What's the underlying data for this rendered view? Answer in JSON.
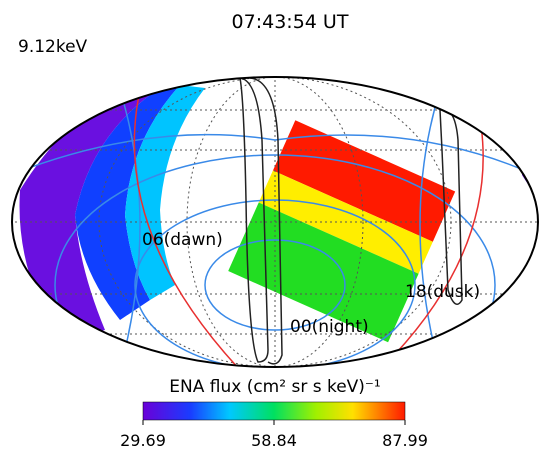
{
  "header": {
    "title": "07:43:54 UT",
    "energy": "9.12keV"
  },
  "map": {
    "labels": [
      "06(dawn)",
      "18(dusk)",
      "00(night)"
    ]
  },
  "colorbar": {
    "title": "ENA flux (cm² sr s keV)⁻¹",
    "clim": [
      29.69,
      87.99
    ],
    "ticks": [
      29.69,
      58.84,
      87.99
    ]
  }
}
